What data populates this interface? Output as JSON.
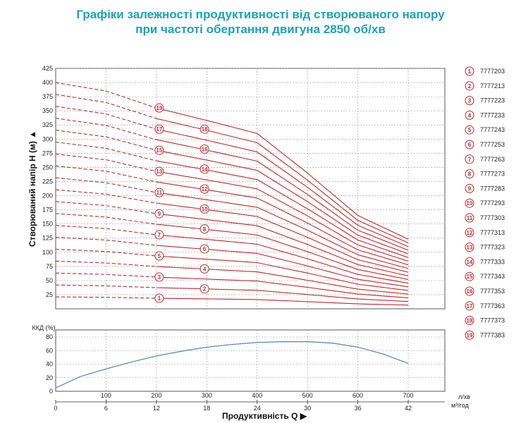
{
  "title_line1": "Графіки залежності продуктивності від створюваного напору",
  "title_line2": "при частоті обертання двигуна 2850 об/хв",
  "chart_data": [
    {
      "type": "line",
      "ylabel": "Створюваний напір H (м)",
      "ylim": [
        0,
        425
      ],
      "yticks": [
        25,
        50,
        75,
        100,
        125,
        150,
        175,
        200,
        225,
        250,
        275,
        300,
        325,
        350,
        375,
        400,
        425
      ],
      "xlim": [
        0,
        700
      ],
      "grid": true,
      "line_color": "#c0262b",
      "shutoff_head_per_stage": 20,
      "series_ids": [
        "7777203",
        "7777213",
        "7777223",
        "7777233",
        "7777243",
        "7777253",
        "7777263",
        "7777273",
        "7777283",
        "7777293",
        "7777303",
        "7777313",
        "7777323",
        "7777333",
        "7777343",
        "7777353",
        "7777363",
        "7777373",
        "7777383"
      ],
      "reference_curve": {
        "note_stage": 19,
        "x": [
          0,
          100,
          200,
          300,
          400,
          500,
          600,
          700
        ],
        "y": [
          400,
          385,
          355,
          333,
          310,
          240,
          165,
          123
        ]
      },
      "dashed_until_x": 200,
      "marker_labels": [
        {
          "n": 1,
          "x": 200
        },
        {
          "n": 2,
          "x": 290
        },
        {
          "n": 3,
          "x": 200
        },
        {
          "n": 4,
          "x": 290
        },
        {
          "n": 5,
          "x": 200
        },
        {
          "n": 6,
          "x": 290
        },
        {
          "n": 7,
          "x": 200
        },
        {
          "n": 8,
          "x": 290
        },
        {
          "n": 9,
          "x": 200
        },
        {
          "n": 10,
          "x": 290
        },
        {
          "n": 11,
          "x": 200
        },
        {
          "n": 12,
          "x": 290
        },
        {
          "n": 13,
          "x": 200
        },
        {
          "n": 14,
          "x": 290
        },
        {
          "n": 15,
          "x": 200
        },
        {
          "n": 16,
          "x": 290
        },
        {
          "n": 17,
          "x": 200
        },
        {
          "n": 18,
          "x": 290
        },
        {
          "n": 19,
          "x": 200
        }
      ]
    },
    {
      "type": "line",
      "ylabel": "ККД (%)",
      "ylim": [
        0,
        80
      ],
      "yticks": [
        0,
        20,
        40,
        60,
        80
      ],
      "line_color": "#5a8fb0",
      "x": [
        0,
        50,
        100,
        150,
        200,
        250,
        300,
        350,
        400,
        450,
        500,
        550,
        600,
        650,
        700
      ],
      "y": [
        5,
        22,
        33,
        43,
        52,
        59,
        65,
        69,
        72,
        73,
        73,
        71,
        65,
        55,
        41
      ]
    }
  ],
  "x_axis": {
    "label": "Продуктивність Q",
    "unit_top": "л/хв",
    "unit_bottom": "м³/год",
    "top_ticks": [
      "100",
      "200",
      "300",
      "400",
      "500",
      "600",
      "700"
    ],
    "bottom_ticks": [
      "0",
      "6",
      "12",
      "18",
      "24",
      "30",
      "36",
      "42"
    ]
  }
}
